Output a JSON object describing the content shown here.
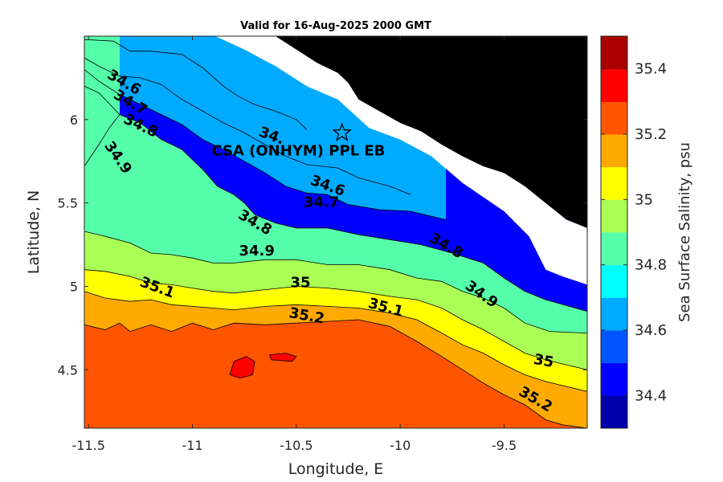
{
  "chart_data": {
    "type": "contour",
    "title": "Valid for 16-Aug-2025 2000 GMT",
    "xlabel": "Longitude, E",
    "ylabel": "Latitude, N",
    "xlim": [
      -11.52,
      -9.1
    ],
    "ylim": [
      4.15,
      6.5
    ],
    "xticks": [
      -11.5,
      -11,
      -10.5,
      -10,
      -9.5
    ],
    "xtick_labels": [
      "-11.5",
      "-11",
      "-10.5",
      "-10",
      "-9.5"
    ],
    "yticks": [
      4.5,
      5,
      5.5,
      6
    ],
    "ytick_labels": [
      "4.5",
      "5",
      "5.5",
      "6"
    ],
    "colorbar": {
      "label": "Sea Surface Salinity, psu",
      "range": [
        34.3,
        35.5
      ],
      "levels": [
        34.3,
        34.4,
        34.5,
        34.6,
        34.7,
        34.8,
        34.9,
        35.0,
        35.1,
        35.2,
        35.3,
        35.4,
        35.5
      ],
      "colors": [
        "#0000AA",
        "#0000FF",
        "#0055FF",
        "#00AAFF",
        "#00FFFF",
        "#55FFAA",
        "#AAFF55",
        "#FFFF00",
        "#FFAA00",
        "#FF5500",
        "#FF0000",
        "#AA0000"
      ],
      "ticks": [
        34.4,
        34.6,
        34.8,
        35,
        35.2,
        35.4
      ],
      "tick_labels": [
        "34.4",
        "34.6",
        "34.8",
        "35",
        "35.2",
        "35.4"
      ]
    },
    "contour_levels": [
      34.5,
      34.6,
      34.7,
      34.8,
      34.9,
      35.0,
      35.1,
      35.2,
      35.3
    ],
    "contour_lines": [
      {
        "level": 34.5,
        "points": [
          [
            -11.52,
            6.48
          ],
          [
            -11.38,
            6.47
          ],
          [
            -11.3,
            6.41
          ],
          [
            -11.2,
            6.41
          ],
          [
            -11.05,
            6.39
          ],
          [
            -10.95,
            6.31
          ],
          [
            -10.85,
            6.2
          ],
          [
            -10.78,
            6.14
          ],
          [
            -10.7,
            6.09
          ],
          [
            -10.6,
            6.05
          ],
          [
            -10.5,
            6.0
          ],
          [
            -10.45,
            5.94
          ]
        ]
      },
      {
        "level": 34.6,
        "points": [
          [
            -11.52,
            6.37
          ],
          [
            -11.45,
            6.32
          ],
          [
            -11.35,
            6.26
          ],
          [
            -11.25,
            6.25
          ],
          [
            -11.15,
            6.21
          ],
          [
            -11.05,
            6.12
          ],
          [
            -10.95,
            6.05
          ],
          [
            -10.85,
            5.98
          ],
          [
            -10.75,
            5.92
          ],
          [
            -10.65,
            5.85
          ],
          [
            -10.55,
            5.78
          ],
          [
            -10.45,
            5.73
          ],
          [
            -10.3,
            5.71
          ],
          [
            -10.2,
            5.65
          ],
          [
            -10.05,
            5.6
          ],
          [
            -9.95,
            5.55
          ]
        ]
      },
      {
        "level": 34.7,
        "points": [
          [
            -11.52,
            6.3
          ],
          [
            -11.45,
            6.23
          ],
          [
            -11.35,
            6.15
          ],
          [
            -11.25,
            6.09
          ],
          [
            -11.15,
            6.03
          ],
          [
            -11.05,
            5.97
          ],
          [
            -10.95,
            5.88
          ],
          [
            -10.85,
            5.82
          ],
          [
            -10.75,
            5.75
          ],
          [
            -10.65,
            5.68
          ],
          [
            -10.55,
            5.6
          ],
          [
            -10.45,
            5.56
          ],
          [
            -10.35,
            5.55
          ],
          [
            -10.25,
            5.49
          ],
          [
            -10.1,
            5.46
          ],
          [
            -9.95,
            5.45
          ],
          [
            -9.85,
            5.42
          ],
          [
            -9.78,
            5.4
          ]
        ]
      },
      {
        "level": 34.8,
        "points": [
          [
            -11.52,
            6.2
          ],
          [
            -11.45,
            6.16
          ],
          [
            -11.35,
            6.03
          ],
          [
            -11.25,
            5.98
          ],
          [
            -11.15,
            5.88
          ],
          [
            -11.05,
            5.82
          ],
          [
            -10.95,
            5.7
          ],
          [
            -10.88,
            5.6
          ],
          [
            -10.8,
            5.55
          ],
          [
            -10.75,
            5.5
          ],
          [
            -10.7,
            5.43
          ],
          [
            -10.6,
            5.38
          ],
          [
            -10.5,
            5.35
          ],
          [
            -10.35,
            5.35
          ],
          [
            -10.2,
            5.31
          ],
          [
            -10.05,
            5.28
          ],
          [
            -9.9,
            5.25
          ],
          [
            -9.75,
            5.2
          ],
          [
            -9.6,
            5.14
          ],
          [
            -9.5,
            5.05
          ],
          [
            -9.4,
            4.97
          ],
          [
            -9.3,
            4.92
          ],
          [
            -9.1,
            4.85
          ]
        ]
      },
      {
        "level": 34.9,
        "points": [
          [
            -11.52,
            5.72
          ],
          [
            -11.45,
            5.85
          ],
          [
            -11.4,
            5.95
          ],
          [
            -11.35,
            6.03
          ]
        ]
      },
      {
        "level": 34.9,
        "points": [
          [
            -11.52,
            5.33
          ],
          [
            -11.42,
            5.3
          ],
          [
            -11.3,
            5.26
          ],
          [
            -11.2,
            5.2
          ],
          [
            -11.1,
            5.19
          ],
          [
            -11.0,
            5.17
          ],
          [
            -10.9,
            5.14
          ],
          [
            -10.8,
            5.14
          ],
          [
            -10.65,
            5.16
          ],
          [
            -10.5,
            5.16
          ],
          [
            -10.35,
            5.13
          ],
          [
            -10.2,
            5.13
          ],
          [
            -10.05,
            5.1
          ],
          [
            -9.92,
            5.05
          ],
          [
            -9.8,
            5.03
          ],
          [
            -9.7,
            4.97
          ],
          [
            -9.6,
            4.93
          ],
          [
            -9.5,
            4.87
          ],
          [
            -9.4,
            4.78
          ],
          [
            -9.28,
            4.73
          ],
          [
            -9.1,
            4.72
          ]
        ]
      },
      {
        "level": 35.0,
        "points": [
          [
            -11.52,
            5.1
          ],
          [
            -11.42,
            5.09
          ],
          [
            -11.3,
            5.06
          ],
          [
            -11.2,
            5.02
          ],
          [
            -11.1,
            5.01
          ],
          [
            -11.0,
            4.99
          ],
          [
            -10.9,
            4.97
          ],
          [
            -10.8,
            4.96
          ],
          [
            -10.65,
            4.98
          ],
          [
            -10.5,
            5.0
          ],
          [
            -10.35,
            4.99
          ],
          [
            -10.2,
            4.97
          ],
          [
            -10.05,
            4.94
          ],
          [
            -9.92,
            4.92
          ],
          [
            -9.8,
            4.87
          ],
          [
            -9.7,
            4.8
          ],
          [
            -9.6,
            4.74
          ],
          [
            -9.5,
            4.67
          ],
          [
            -9.4,
            4.6
          ],
          [
            -9.3,
            4.56
          ],
          [
            -9.2,
            4.53
          ],
          [
            -9.1,
            4.5
          ]
        ]
      },
      {
        "level": 35.1,
        "points": [
          [
            -11.52,
            4.97
          ],
          [
            -11.42,
            4.93
          ],
          [
            -11.3,
            4.91
          ],
          [
            -11.2,
            4.92
          ],
          [
            -11.1,
            4.89
          ],
          [
            -11.0,
            4.88
          ],
          [
            -10.9,
            4.87
          ],
          [
            -10.8,
            4.86
          ],
          [
            -10.65,
            4.88
          ],
          [
            -10.5,
            4.89
          ],
          [
            -10.35,
            4.88
          ],
          [
            -10.2,
            4.87
          ],
          [
            -10.05,
            4.84
          ],
          [
            -9.92,
            4.8
          ],
          [
            -9.8,
            4.72
          ],
          [
            -9.7,
            4.65
          ],
          [
            -9.6,
            4.6
          ],
          [
            -9.5,
            4.53
          ],
          [
            -9.4,
            4.47
          ],
          [
            -9.3,
            4.43
          ],
          [
            -9.2,
            4.4
          ],
          [
            -9.1,
            4.37
          ]
        ]
      },
      {
        "level": 35.2,
        "points": [
          [
            -11.52,
            4.77
          ],
          [
            -11.42,
            4.74
          ],
          [
            -11.35,
            4.78
          ],
          [
            -11.3,
            4.73
          ],
          [
            -11.2,
            4.77
          ],
          [
            -11.1,
            4.73
          ],
          [
            -11.0,
            4.78
          ],
          [
            -10.9,
            4.74
          ],
          [
            -10.8,
            4.78
          ],
          [
            -10.65,
            4.77
          ],
          [
            -10.5,
            4.78
          ],
          [
            -10.35,
            4.79
          ],
          [
            -10.2,
            4.8
          ],
          [
            -10.05,
            4.76
          ],
          [
            -9.92,
            4.67
          ],
          [
            -9.8,
            4.58
          ],
          [
            -9.7,
            4.5
          ],
          [
            -9.6,
            4.42
          ],
          [
            -9.5,
            4.35
          ],
          [
            -9.4,
            4.29
          ],
          [
            -9.3,
            4.2
          ],
          [
            -9.22,
            4.17
          ],
          [
            -9.1,
            4.15
          ]
        ]
      }
    ],
    "hot_spots": [
      {
        "level": 35.3,
        "points": [
          [
            -10.8,
            4.55
          ],
          [
            -10.74,
            4.58
          ],
          [
            -10.7,
            4.55
          ],
          [
            -10.71,
            4.47
          ],
          [
            -10.77,
            4.45
          ],
          [
            -10.82,
            4.47
          ]
        ]
      },
      {
        "level": 35.3,
        "points": [
          [
            -10.63,
            4.59
          ],
          [
            -10.55,
            4.6
          ],
          [
            -10.5,
            4.58
          ],
          [
            -10.52,
            4.55
          ],
          [
            -10.62,
            4.56
          ]
        ]
      }
    ],
    "land": [
      {
        "points": [
          [
            -10.89,
            6.5
          ],
          [
            -10.6,
            6.5
          ],
          [
            -10.5,
            6.42
          ],
          [
            -10.4,
            6.34
          ],
          [
            -10.3,
            6.28
          ],
          [
            -10.25,
            6.22
          ],
          [
            -10.2,
            6.12
          ],
          [
            -10.1,
            6.05
          ],
          [
            -10.0,
            5.98
          ],
          [
            -9.9,
            5.93
          ],
          [
            -9.8,
            5.85
          ],
          [
            -9.7,
            5.78
          ],
          [
            -9.6,
            5.72
          ],
          [
            -9.5,
            5.68
          ],
          [
            -9.4,
            5.6
          ],
          [
            -9.3,
            5.5
          ],
          [
            -9.2,
            5.4
          ],
          [
            -9.1,
            5.35
          ],
          [
            -9.1,
            6.5
          ]
        ]
      }
    ],
    "coast_gap": [
      {
        "points": [
          [
            -11.52,
            6.5
          ],
          [
            -10.89,
            6.5
          ],
          [
            -10.75,
            6.42
          ],
          [
            -10.6,
            6.32
          ],
          [
            -10.45,
            6.2
          ],
          [
            -10.3,
            6.12
          ],
          [
            -10.15,
            5.95
          ],
          [
            -10.0,
            5.88
          ],
          [
            -9.85,
            5.78
          ],
          [
            -9.7,
            5.62
          ],
          [
            -9.5,
            5.45
          ],
          [
            -9.38,
            5.3
          ],
          [
            -9.3,
            5.1
          ],
          [
            -9.22,
            5.06
          ],
          [
            -9.1,
            5.01
          ],
          [
            -9.1,
            6.5
          ],
          [
            -9.1,
            5.35
          ],
          [
            -9.2,
            5.4
          ],
          [
            -9.3,
            5.5
          ],
          [
            -9.4,
            5.6
          ],
          [
            -9.5,
            5.68
          ],
          [
            -9.6,
            5.72
          ],
          [
            -9.7,
            5.78
          ],
          [
            -9.8,
            5.85
          ],
          [
            -9.9,
            5.93
          ],
          [
            -10.0,
            5.98
          ],
          [
            -10.1,
            6.05
          ],
          [
            -10.2,
            6.12
          ],
          [
            -10.25,
            6.22
          ],
          [
            -10.3,
            6.28
          ],
          [
            -10.4,
            6.34
          ],
          [
            -10.5,
            6.42
          ],
          [
            -10.6,
            6.5
          ]
        ]
      }
    ],
    "contour_labels": [
      {
        "text": "34.6",
        "lon": -11.33,
        "lat": 6.22,
        "angle": 30
      },
      {
        "text": "34.7",
        "lon": -11.3,
        "lat": 6.1,
        "angle": 30
      },
      {
        "text": "34.8",
        "lon": -11.25,
        "lat": 5.96,
        "angle": 25
      },
      {
        "text": "34.9",
        "lon": -11.36,
        "lat": 5.77,
        "angle": 55
      },
      {
        "text": "34.",
        "lon": -10.62,
        "lat": 5.9,
        "angle": 20
      },
      {
        "text": "34.6",
        "lon": -10.35,
        "lat": 5.6,
        "angle": 20
      },
      {
        "text": "34.7",
        "lon": -10.38,
        "lat": 5.5,
        "angle": 0
      },
      {
        "text": "34.8",
        "lon": -10.7,
        "lat": 5.38,
        "angle": 30
      },
      {
        "text": "34.9",
        "lon": -10.69,
        "lat": 5.21,
        "angle": 0
      },
      {
        "text": "34.8",
        "lon": -9.78,
        "lat": 5.24,
        "angle": 30
      },
      {
        "text": "35.1",
        "lon": -11.17,
        "lat": 4.99,
        "angle": 20
      },
      {
        "text": "35",
        "lon": -10.48,
        "lat": 5.02,
        "angle": 0
      },
      {
        "text": "35.1",
        "lon": -10.07,
        "lat": 4.87,
        "angle": 15
      },
      {
        "text": "35.2",
        "lon": -10.45,
        "lat": 4.82,
        "angle": 10
      },
      {
        "text": "34.9",
        "lon": -9.61,
        "lat": 4.95,
        "angle": 35
      },
      {
        "text": "35",
        "lon": -9.31,
        "lat": 4.55,
        "angle": 10
      },
      {
        "text": "35.2",
        "lon": -9.35,
        "lat": 4.32,
        "angle": 30
      }
    ],
    "annotations": [
      {
        "text": "CSA (ONHYM) PPL EB",
        "lon": -10.49,
        "lat": 5.81,
        "marker": "star",
        "marker_lon": -10.28,
        "marker_lat": 5.92
      }
    ]
  }
}
